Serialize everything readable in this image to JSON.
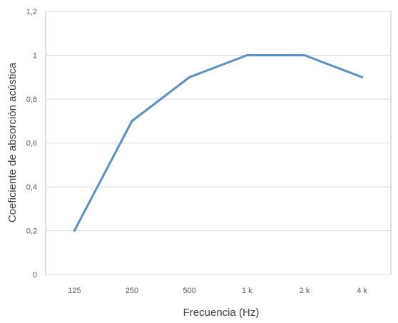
{
  "chart_data": {
    "type": "line",
    "title": "",
    "xlabel": "Frecuencia (Hz)",
    "ylabel": "Coeficiente de absorción acústica",
    "categories": [
      "125",
      "250",
      "500",
      "1 k",
      "2 k",
      "4 k"
    ],
    "series": [
      {
        "values": [
          0.2,
          0.7,
          0.9,
          1.0,
          1.0,
          0.9
        ],
        "color": "#5b8fc7"
      }
    ],
    "ylim": [
      0,
      1.2
    ],
    "yticks": [
      "0",
      "0,2",
      "0,4",
      "0,6",
      "0,8",
      "1",
      "1,2"
    ],
    "ytick_values": [
      0,
      0.2,
      0.4,
      0.6,
      0.8,
      1.0,
      1.2
    ],
    "grid": true,
    "legend": "none",
    "colors": {
      "line": "#5b8fc7",
      "grid": "#d9d9d9"
    }
  }
}
